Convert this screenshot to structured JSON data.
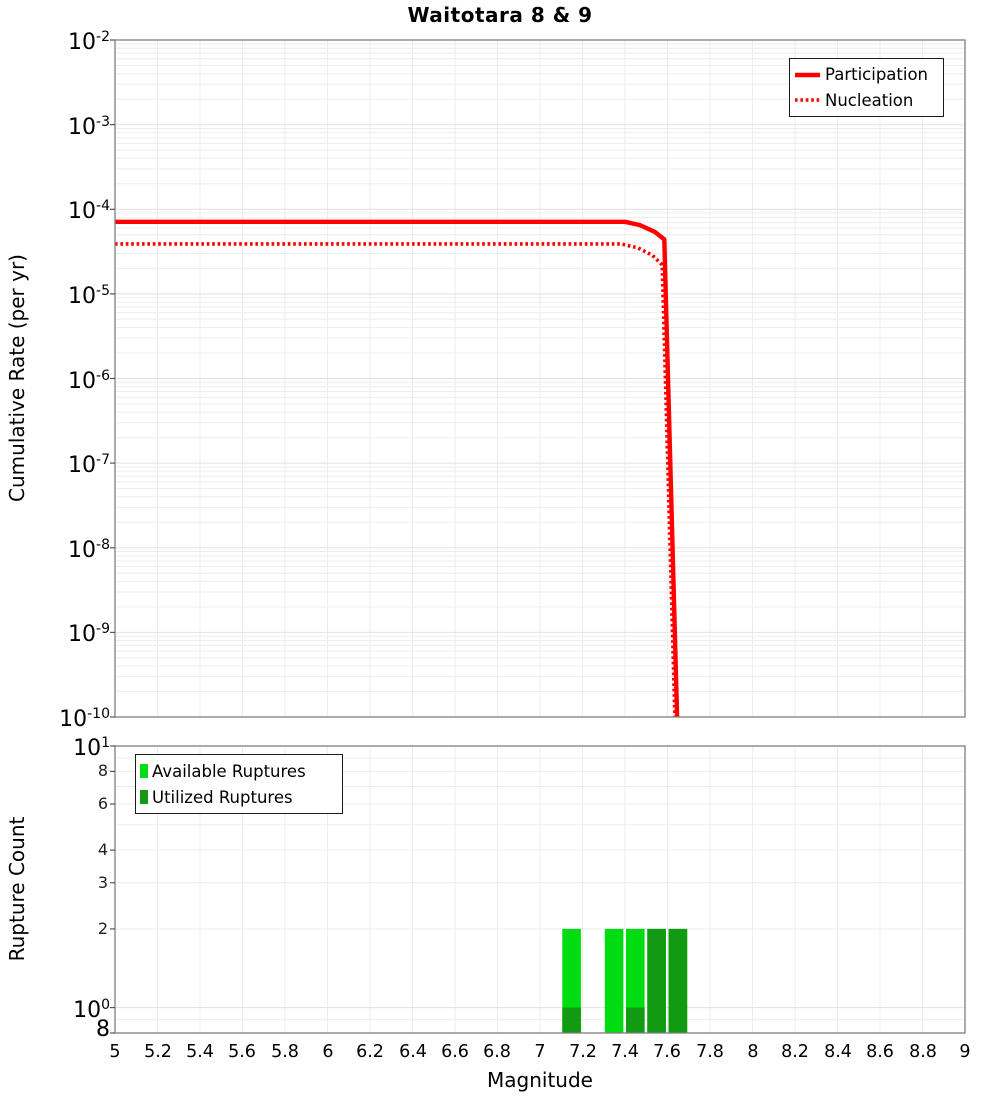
{
  "figure_bg": "#ffffff",
  "accent_red": "#ff0000",
  "chart_data": [
    {
      "type": "line",
      "title": "Waitotara 8 & 9",
      "xlabel": "Magnitude",
      "ylabel": "Cumulative Rate (per yr)",
      "xlim": [
        5,
        9
      ],
      "ylim": [
        1e-10,
        0.01
      ],
      "yscale": "log",
      "grid": true,
      "legend_position": "top-right",
      "y_tick_exponents": [
        "-2",
        "-3",
        "-4",
        "-5",
        "-6",
        "-7",
        "-8",
        "-9",
        "-10"
      ],
      "series": [
        {
          "name": "Participation",
          "style": "solid",
          "color": "#ff0000",
          "points": [
            [
              5.0,
              7.1e-05
            ],
            [
              7.4,
              7.1e-05
            ],
            [
              7.47,
              6.5e-05
            ],
            [
              7.54,
              5.4e-05
            ],
            [
              7.585,
              4.4e-05
            ],
            [
              7.645,
              1e-10
            ]
          ]
        },
        {
          "name": "Nucleation",
          "style": "dotted",
          "color": "#ff0000",
          "points": [
            [
              5.0,
              3.9e-05
            ],
            [
              7.38,
              3.9e-05
            ],
            [
              7.46,
              3.5e-05
            ],
            [
              7.53,
              2.85e-05
            ],
            [
              7.575,
              2.2e-05
            ],
            [
              7.635,
              1e-10
            ]
          ]
        }
      ]
    },
    {
      "type": "bar",
      "xlabel": "Magnitude",
      "ylabel": "Rupture Count",
      "xlim": [
        5,
        9
      ],
      "ylim": [
        0.8,
        10
      ],
      "yscale": "log",
      "grid": true,
      "legend_position": "top-left",
      "bin_width": 0.1,
      "x_tick_labels": [
        "5",
        "5.2",
        "5.4",
        "5.6",
        "5.8",
        "6",
        "6.2",
        "6.4",
        "6.6",
        "6.8",
        "7",
        "7.2",
        "7.4",
        "7.6",
        "7.8",
        "8",
        "8.2",
        "8.4",
        "8.6",
        "8.8",
        "9"
      ],
      "y_major_ticks": [
        {
          "text": "10",
          "sup": "1",
          "value": 10
        },
        {
          "text": "10",
          "sup": "0",
          "value": 1
        },
        {
          "text": "8",
          "sup": "",
          "value": 0.8
        }
      ],
      "y_minor_ticks": [
        {
          "text": "8",
          "value": 8
        },
        {
          "text": "6",
          "value": 6
        },
        {
          "text": "4",
          "value": 4
        },
        {
          "text": "3",
          "value": 3
        },
        {
          "text": "2",
          "value": 2
        }
      ],
      "series": [
        {
          "name": "Available Ruptures",
          "color": "#00DC12",
          "bins": [
            {
              "bin": [
                7.1,
                7.2
              ],
              "count": 2
            },
            {
              "bin": [
                7.3,
                7.4
              ],
              "count": 2
            },
            {
              "bin": [
                7.4,
                7.5
              ],
              "count": 2
            },
            {
              "bin": [
                7.5,
                7.6
              ],
              "count": 2
            },
            {
              "bin": [
                7.6,
                7.7
              ],
              "count": 2
            }
          ]
        },
        {
          "name": "Utilized Ruptures",
          "color": "#119A12",
          "bins": [
            {
              "bin": [
                7.1,
                7.2
              ],
              "count": 1
            },
            {
              "bin": [
                7.4,
                7.5
              ],
              "count": 1
            },
            {
              "bin": [
                7.5,
                7.6
              ],
              "count": 2
            },
            {
              "bin": [
                7.6,
                7.7
              ],
              "count": 2
            }
          ]
        }
      ]
    }
  ]
}
